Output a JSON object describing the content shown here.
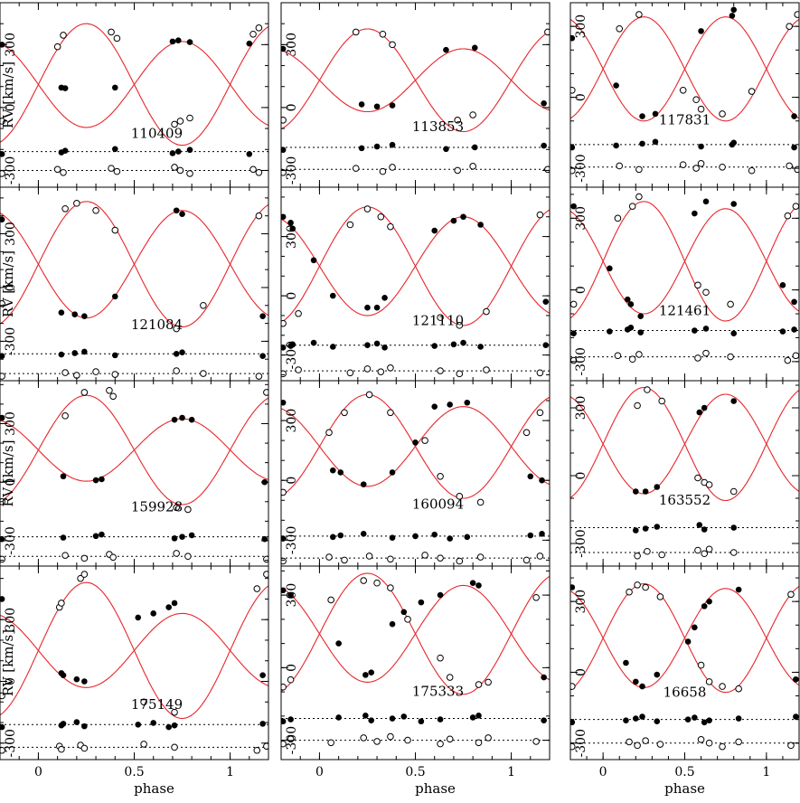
{
  "figure": {
    "ylabel": "RV [km/s]",
    "xlabel": "phase",
    "colors": {
      "model": "#e8262b",
      "frame": "#000000",
      "dotted": "#000000"
    }
  },
  "chart_data": {
    "type": "scatter",
    "layout": {
      "rows": 4,
      "cols": 3
    },
    "xlim": [
      -0.2,
      1.2
    ],
    "xticks": [
      0,
      0.5,
      1
    ],
    "xticklabels": [
      "0",
      "0.5",
      "1"
    ],
    "xlabel": "phase",
    "ylabel": "RV [km/s]",
    "yticks": [
      -300,
      0,
      300
    ],
    "yticklabels": [
      "-300",
      "0",
      "300"
    ],
    "markers": {
      "primary": "filled circle",
      "secondary": "open circle",
      "model": "red line",
      "residual_baselines": "dotted lines"
    },
    "panels": [
      {
        "label": "110409",
        "ylim": [
          -380,
          500
        ],
        "gamma": 110,
        "k1": 205,
        "k2": 290,
        "base1": -210,
        "base2": -300,
        "primary": [
          [
            -0.19,
            300
          ],
          [
            0.12,
            95
          ],
          [
            0.14,
            92
          ],
          [
            0.4,
            95
          ],
          [
            0.7,
            315
          ],
          [
            0.73,
            320
          ],
          [
            0.79,
            312
          ],
          [
            1.1,
            305
          ]
        ],
        "secondary": [
          [
            -0.19,
            -65
          ],
          [
            0.1,
            290
          ],
          [
            0.13,
            345
          ],
          [
            0.38,
            360
          ],
          [
            0.41,
            330
          ],
          [
            0.71,
            -80
          ],
          [
            0.74,
            -65
          ],
          [
            0.79,
            -50
          ],
          [
            1.12,
            350
          ],
          [
            1.15,
            380
          ]
        ]
      },
      {
        "label": "113853",
        "ylim": [
          -380,
          500
        ],
        "gamma": 130,
        "k1": 150,
        "k2": 245,
        "base1": -190,
        "base2": -295,
        "primary": [
          [
            -0.19,
            280
          ],
          [
            0.22,
            15
          ],
          [
            0.3,
            5
          ],
          [
            0.38,
            10
          ],
          [
            0.66,
            275
          ],
          [
            0.81,
            285
          ],
          [
            1.17,
            20
          ]
        ],
        "secondary": [
          [
            -0.19,
            -60
          ],
          [
            0.19,
            360
          ],
          [
            0.33,
            350
          ],
          [
            0.38,
            300
          ],
          [
            0.72,
            -60
          ],
          [
            0.8,
            -35
          ],
          [
            1.19,
            360
          ]
        ]
      },
      {
        "label": "117831",
        "ylim": [
          -380,
          400
        ],
        "gamma": 120,
        "k1": 220,
        "k2": 220,
        "base1": -200,
        "base2": -295,
        "primary": [
          [
            -0.19,
            250
          ],
          [
            0.08,
            50
          ],
          [
            0.24,
            -80
          ],
          [
            0.32,
            -70
          ],
          [
            0.6,
            280
          ],
          [
            0.79,
            345
          ],
          [
            0.8,
            370
          ],
          [
            1.17,
            -80
          ]
        ],
        "secondary": [
          [
            -0.19,
            30
          ],
          [
            0.1,
            290
          ],
          [
            0.22,
            350
          ],
          [
            0.49,
            30
          ],
          [
            0.57,
            -10
          ],
          [
            0.6,
            -50
          ],
          [
            0.73,
            -70
          ],
          [
            0.91,
            25
          ],
          [
            1.14,
            300
          ],
          [
            1.19,
            350
          ]
        ]
      },
      {
        "label": "121084",
        "ylim": [
          -520,
          560
        ],
        "gamma": 130,
        "k1": 300,
        "k2": 350,
        "base1": -370,
        "base2": -480,
        "primary": [
          [
            -0.19,
            380
          ],
          [
            0.12,
            -140
          ],
          [
            0.19,
            -150
          ],
          [
            0.24,
            -160
          ],
          [
            0.4,
            -50
          ],
          [
            0.72,
            430
          ],
          [
            0.75,
            410
          ],
          [
            1.17,
            -160
          ]
        ],
        "secondary": [
          [
            -0.19,
            -90
          ],
          [
            0.14,
            440
          ],
          [
            0.2,
            470
          ],
          [
            0.3,
            430
          ],
          [
            0.4,
            320
          ],
          [
            0.72,
            -230
          ],
          [
            0.86,
            -100
          ],
          [
            1.15,
            400
          ]
        ]
      },
      {
        "label": "121110",
        "ylim": [
          -430,
          550
        ],
        "gamma": 150,
        "k1": 250,
        "k2": 300,
        "base1": -250,
        "base2": -380,
        "primary": [
          [
            -0.19,
            400
          ],
          [
            -0.15,
            370
          ],
          [
            -0.14,
            340
          ],
          [
            -0.03,
            180
          ],
          [
            0.07,
            0
          ],
          [
            0.25,
            -60
          ],
          [
            0.3,
            -60
          ],
          [
            0.34,
            -10
          ],
          [
            0.6,
            330
          ],
          [
            0.7,
            380
          ],
          [
            0.75,
            400
          ],
          [
            0.84,
            360
          ],
          [
            1.18,
            -30
          ]
        ],
        "secondary": [
          [
            -0.19,
            -140
          ],
          [
            -0.11,
            -90
          ],
          [
            0.16,
            360
          ],
          [
            0.25,
            440
          ],
          [
            0.32,
            400
          ],
          [
            0.37,
            350
          ],
          [
            0.63,
            -110
          ],
          [
            0.73,
            -150
          ],
          [
            0.87,
            -80
          ],
          [
            1.15,
            410
          ]
        ]
      },
      {
        "label": "121461",
        "ylim": [
          -380,
          430
        ],
        "gamma": 120,
        "k1": 220,
        "k2": 250,
        "base1": -170,
        "base2": -280,
        "primary": [
          [
            -0.18,
            350
          ],
          [
            0.04,
            90
          ],
          [
            0.15,
            -40
          ],
          [
            0.17,
            -60
          ],
          [
            0.23,
            -110
          ],
          [
            0.56,
            320
          ],
          [
            0.63,
            370
          ],
          [
            0.8,
            360
          ],
          [
            1.1,
            20
          ],
          [
            1.17,
            -50
          ]
        ],
        "secondary": [
          [
            -0.18,
            -60
          ],
          [
            0.09,
            300
          ],
          [
            0.18,
            350
          ],
          [
            0.22,
            390
          ],
          [
            0.58,
            20
          ],
          [
            0.63,
            -10
          ],
          [
            0.78,
            -60
          ],
          [
            1.13,
            310
          ],
          [
            1.18,
            350
          ]
        ]
      },
      {
        "label": "159928",
        "ylim": [
          -430,
          520
        ],
        "gamma": 165,
        "k1": 160,
        "k2": 280,
        "base1": -280,
        "base2": -380,
        "primary": [
          [
            -0.19,
            330
          ],
          [
            0.13,
            30
          ],
          [
            0.3,
            10
          ],
          [
            0.33,
            15
          ],
          [
            0.71,
            320
          ],
          [
            0.75,
            330
          ],
          [
            0.8,
            320
          ],
          [
            1.18,
            0
          ]
        ],
        "secondary": [
          [
            -0.19,
            -100
          ],
          [
            0.14,
            340
          ],
          [
            0.24,
            460
          ],
          [
            0.37,
            470
          ],
          [
            0.39,
            440
          ],
          [
            0.72,
            -130
          ],
          [
            0.78,
            -140
          ],
          [
            1.19,
            460
          ]
        ]
      },
      {
        "label": "160094",
        "ylim": [
          -430,
          500
        ],
        "gamma": 170,
        "k1": 200,
        "k2": 260,
        "base1": -280,
        "base2": -390,
        "primary": [
          [
            -0.19,
            390
          ],
          [
            0.07,
            50
          ],
          [
            0.11,
            40
          ],
          [
            0.23,
            -20
          ],
          [
            0.38,
            40
          ],
          [
            0.5,
            190
          ],
          [
            0.6,
            370
          ],
          [
            0.68,
            380
          ],
          [
            0.77,
            390
          ],
          [
            1.1,
            20
          ],
          [
            1.16,
            0
          ]
        ],
        "secondary": [
          [
            -0.19,
            -60
          ],
          [
            0.05,
            240
          ],
          [
            0.13,
            340
          ],
          [
            0.26,
            430
          ],
          [
            0.37,
            340
          ],
          [
            0.55,
            200
          ],
          [
            0.63,
            20
          ],
          [
            0.73,
            -80
          ],
          [
            0.84,
            -110
          ],
          [
            1.08,
            240
          ],
          [
            1.15,
            340
          ]
        ]
      },
      {
        "label": "163552",
        "ylim": [
          -400,
          420
        ],
        "gamma": 140,
        "k1": 220,
        "k2": 250,
        "base1": -230,
        "base2": -340,
        "primary": [
          [
            0.2,
            -70
          ],
          [
            0.26,
            -70
          ],
          [
            0.33,
            -50
          ],
          [
            0.59,
            280
          ],
          [
            0.62,
            300
          ],
          [
            0.8,
            330
          ]
        ],
        "secondary": [
          [
            0.21,
            310
          ],
          [
            0.27,
            380
          ],
          [
            0.36,
            330
          ],
          [
            0.58,
            -10
          ],
          [
            0.62,
            -30
          ],
          [
            0.65,
            -40
          ],
          [
            0.8,
            -70
          ]
        ]
      },
      {
        "label": "175149",
        "ylim": [
          -380,
          560
        ],
        "gamma": 150,
        "k1": 180,
        "k2": 330,
        "base1": -210,
        "base2": -320,
        "primary": [
          [
            -0.19,
            400
          ],
          [
            0.12,
            40
          ],
          [
            0.13,
            30
          ],
          [
            0.2,
            10
          ],
          [
            0.24,
            0
          ],
          [
            0.52,
            310
          ],
          [
            0.6,
            330
          ],
          [
            0.68,
            360
          ],
          [
            0.71,
            380
          ],
          [
            1.17,
            30
          ]
        ],
        "secondary": [
          [
            -0.19,
            -70
          ],
          [
            0.11,
            360
          ],
          [
            0.12,
            380
          ],
          [
            0.22,
            500
          ],
          [
            0.24,
            520
          ],
          [
            0.55,
            -100
          ],
          [
            0.71,
            -150
          ],
          [
            1.14,
            450
          ],
          [
            1.19,
            520
          ]
        ]
      },
      {
        "label": "175333",
        "ylim": [
          -380,
          420
        ],
        "gamma": 140,
        "k1": 200,
        "k2": 250,
        "base1": -210,
        "base2": -300,
        "primary": [
          [
            -0.19,
            320
          ],
          [
            -0.15,
            300
          ],
          [
            0.1,
            100
          ],
          [
            0.24,
            -30
          ],
          [
            0.27,
            -20
          ],
          [
            0.38,
            180
          ],
          [
            0.44,
            230
          ],
          [
            0.53,
            270
          ],
          [
            0.63,
            300
          ],
          [
            0.8,
            350
          ],
          [
            0.83,
            340
          ],
          [
            1.17,
            -40
          ]
        ],
        "secondary": [
          [
            -0.19,
            -80
          ],
          [
            -0.15,
            -50
          ],
          [
            0.06,
            280
          ],
          [
            0.23,
            360
          ],
          [
            0.3,
            350
          ],
          [
            0.37,
            330
          ],
          [
            0.46,
            200
          ],
          [
            0.63,
            40
          ],
          [
            0.68,
            -40
          ],
          [
            0.83,
            -70
          ],
          [
            0.88,
            -60
          ],
          [
            1.13,
            290
          ]
        ]
      },
      {
        "label": "16658",
        "ylim": [
          -370,
          450
        ],
        "gamma": 145,
        "k1": 210,
        "k2": 230,
        "base1": -200,
        "base2": -300,
        "primary": [
          [
            -0.19,
            360
          ],
          [
            0.14,
            40
          ],
          [
            0.2,
            -40
          ],
          [
            0.24,
            -60
          ],
          [
            0.33,
            -10
          ],
          [
            0.52,
            130
          ],
          [
            0.56,
            190
          ],
          [
            0.62,
            280
          ],
          [
            0.65,
            300
          ],
          [
            0.83,
            350
          ],
          [
            1.18,
            -30
          ]
        ],
        "secondary": [
          [
            -0.19,
            -60
          ],
          [
            0.16,
            340
          ],
          [
            0.21,
            370
          ],
          [
            0.26,
            360
          ],
          [
            0.35,
            320
          ],
          [
            0.6,
            30
          ],
          [
            0.65,
            -40
          ],
          [
            0.73,
            -60
          ],
          [
            0.83,
            -70
          ],
          [
            1.15,
            330
          ]
        ]
      }
    ]
  }
}
